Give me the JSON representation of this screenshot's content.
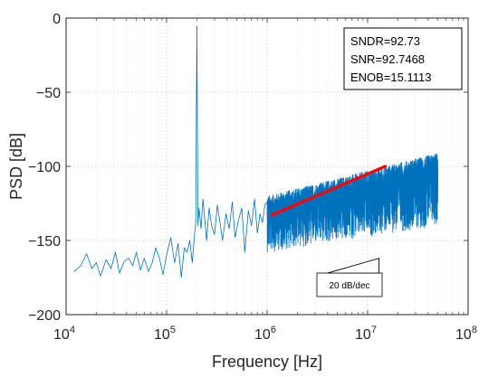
{
  "chart_data": {
    "type": "line",
    "xlabel": "Frequency [Hz]",
    "ylabel": "PSD [dB]",
    "xscale": "log",
    "xlim": [
      10000,
      100000000
    ],
    "ylim": [
      -200,
      0
    ],
    "grid": true,
    "x_ticks": [
      {
        "value": 10000,
        "base": "10",
        "exp": "4"
      },
      {
        "value": 100000,
        "base": "10",
        "exp": "5"
      },
      {
        "value": 1000000,
        "base": "10",
        "exp": "6"
      },
      {
        "value": 10000000,
        "base": "10",
        "exp": "7"
      },
      {
        "value": 100000000,
        "base": "10",
        "exp": "8"
      }
    ],
    "y_ticks": [
      {
        "value": 0,
        "label": "0"
      },
      {
        "value": -50,
        "label": "−50"
      },
      {
        "value": -100,
        "label": "−100"
      },
      {
        "value": -150,
        "label": "−150"
      },
      {
        "value": -200,
        "label": "−200"
      }
    ],
    "series": [
      {
        "color": "#0072BD",
        "peak": {
          "x": 200000,
          "y": -6
        },
        "x": [
          12000,
          14000,
          16000,
          18000,
          20000,
          22000,
          25000,
          28000,
          31000,
          34000,
          38000,
          42000,
          46000,
          50000,
          55000,
          60000,
          66000,
          72000,
          78000,
          85000,
          92000,
          100000,
          110000,
          120000,
          130000,
          140000,
          150000,
          160000,
          170000,
          180000,
          190000,
          195000,
          200000,
          205000,
          210000,
          220000,
          230000,
          240000,
          250000,
          265000,
          280000,
          300000,
          320000,
          340000,
          360000,
          390000,
          420000,
          450000,
          480000,
          520000,
          560000,
          600000,
          650000,
          700000,
          750000,
          800000,
          850000,
          900000,
          950000
        ],
        "y": [
          -171,
          -167,
          -159,
          -169,
          -165,
          -174,
          -163,
          -169,
          -158,
          -172,
          -164,
          -162,
          -167,
          -158,
          -170,
          -162,
          -171,
          -165,
          -155,
          -162,
          -173,
          -160,
          -148,
          -165,
          -152,
          -175,
          -155,
          -158,
          -150,
          -165,
          -145,
          -138,
          -6,
          -140,
          -128,
          -142,
          -122,
          -136,
          -150,
          -128,
          -140,
          -146,
          -126,
          -138,
          -150,
          -132,
          -142,
          -124,
          -148,
          -136,
          -128,
          -158,
          -130,
          -140,
          -122,
          -145,
          -132,
          -138,
          -126
        ],
        "dense_band": {
          "x_range": [
            1000000,
            50000000
          ],
          "upper_at_start": -120,
          "upper_at_end": -91,
          "lower_at_start": -158,
          "lower_at_end": -140
        }
      }
    ],
    "trend_line": {
      "x": [
        1100000,
        15000000
      ],
      "y": [
        -133,
        -100
      ],
      "color": "#ff0000"
    },
    "annotation": {
      "lines": [
        "SNDR=92.73",
        "SNR=92.7468",
        "ENOB=15.1113"
      ]
    },
    "slope_annotation": {
      "label": "20 dB/dec",
      "triangle": {
        "x": [
          4000000,
          13000000,
          13000000
        ],
        "y": [
          -172,
          -172,
          -162
        ]
      }
    }
  }
}
